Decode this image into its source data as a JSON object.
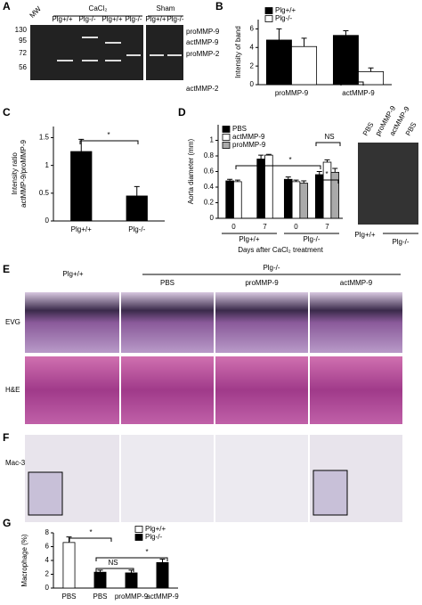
{
  "panel_a": {
    "letter": "A",
    "mw": "MW",
    "treatments": [
      "CaCl₂",
      "Sham"
    ],
    "lanes": [
      "Plg+/+",
      "Plg-/-",
      "Plg+/+",
      "Plg-/-",
      "Plg+/+",
      "Plg-/-"
    ],
    "markers": [
      "130",
      "95",
      "72",
      "56"
    ],
    "bands": [
      "proMMP-9",
      "actMMP-9",
      "proMMP-2",
      "actMMP-2"
    ]
  },
  "panel_d_photo": {
    "labels": [
      "PBS",
      "proMMP-9",
      "actMMP-9",
      "PBS"
    ],
    "groups": [
      "Plg+/+",
      "Plg-/-"
    ]
  },
  "panel_e": {
    "letter": "E",
    "genotypes": [
      "Plg+/+",
      "Plg-/-"
    ],
    "treatments": [
      "PBS",
      "proMMP-9",
      "actMMP-9"
    ],
    "rows": [
      "EVG",
      "H&E"
    ]
  },
  "panel_f": {
    "letter": "F",
    "row": "Mac-3"
  },
  "chart_data": [
    {
      "type": "bar",
      "panel": "B",
      "y_label": [
        "Intensity of band"
      ],
      "categories": [
        "proMMP-9",
        "actMMP-9"
      ],
      "series": [
        {
          "name": "Plg+/+",
          "color": "#000000",
          "values": [
            4.8,
            5.3
          ],
          "errors": [
            1.2,
            0.5
          ]
        },
        {
          "name": "Plg-/-",
          "color": "#ffffff",
          "values": [
            4.1,
            1.4
          ],
          "errors": [
            0.9,
            0.4
          ]
        }
      ],
      "ylim": [
        0,
        7
      ],
      "yticks": [
        0,
        2,
        4,
        6
      ],
      "annotations": [
        "**"
      ]
    },
    {
      "type": "bar",
      "panel": "C",
      "y_label": [
        "Intensity ratio",
        "actMMP-9/proMMP-9"
      ],
      "categories": [
        "Plg+/+",
        "Plg-/-"
      ],
      "series": [
        {
          "color": "#000000",
          "values": [
            1.25,
            0.45
          ],
          "errors": [
            0.22,
            0.17
          ]
        }
      ],
      "ylim": [
        0,
        1.7
      ],
      "yticks": [
        0,
        0.5,
        1,
        1.5
      ],
      "annotations": [
        "*"
      ]
    },
    {
      "type": "bar",
      "panel": "D",
      "y_label": [
        "Aorta diameter (mm)"
      ],
      "x_label": "Days after CaCl₂ treatment",
      "categories": [
        "0",
        "7",
        "0",
        "7"
      ],
      "groups": [
        "Plg+/+",
        "Plg-/-"
      ],
      "series": [
        {
          "name": "PBS",
          "color": "#000000",
          "values": [
            0.48,
            0.76,
            0.5,
            0.56
          ],
          "errors": [
            0.02,
            0.05,
            0.03,
            0.04
          ]
        },
        {
          "name": "actMMP-9",
          "color": "#ffffff",
          "values": [
            0.47,
            0.81,
            0.47,
            0.72
          ],
          "errors": [
            0.02,
            0.01,
            0.02,
            0.03
          ]
        },
        {
          "name": "proMMP-9",
          "color": "#aaaaaa",
          "values": [
            null,
            null,
            0.45,
            0.59
          ],
          "errors": [
            null,
            null,
            0.03,
            0.05
          ]
        }
      ],
      "ylim": [
        0,
        1.2
      ],
      "yticks": [
        0,
        0.2,
        0.4,
        0.6,
        0.8,
        1
      ],
      "annotations": [
        "*",
        "*",
        "NS"
      ]
    },
    {
      "type": "bar",
      "panel": "G",
      "y_label": [
        "Macrophage (%)"
      ],
      "categories": [
        "PBS",
        "PBS",
        "proMMP-9",
        "actMMP-9"
      ],
      "series": [
        {
          "name": "Plg+/+",
          "color": "#ffffff",
          "values": [
            6.6,
            null,
            null,
            null
          ],
          "errors": [
            0.8,
            null,
            null,
            null
          ]
        },
        {
          "name": "Plg-/-",
          "color": "#000000",
          "values": [
            null,
            2.3,
            2.2,
            3.7
          ],
          "errors": [
            null,
            0.3,
            0.4,
            0.5
          ]
        }
      ],
      "ylim": [
        0,
        8
      ],
      "yticks": [
        0,
        2,
        4,
        6,
        8
      ],
      "annotations": [
        "*",
        "NS",
        "*"
      ]
    }
  ]
}
